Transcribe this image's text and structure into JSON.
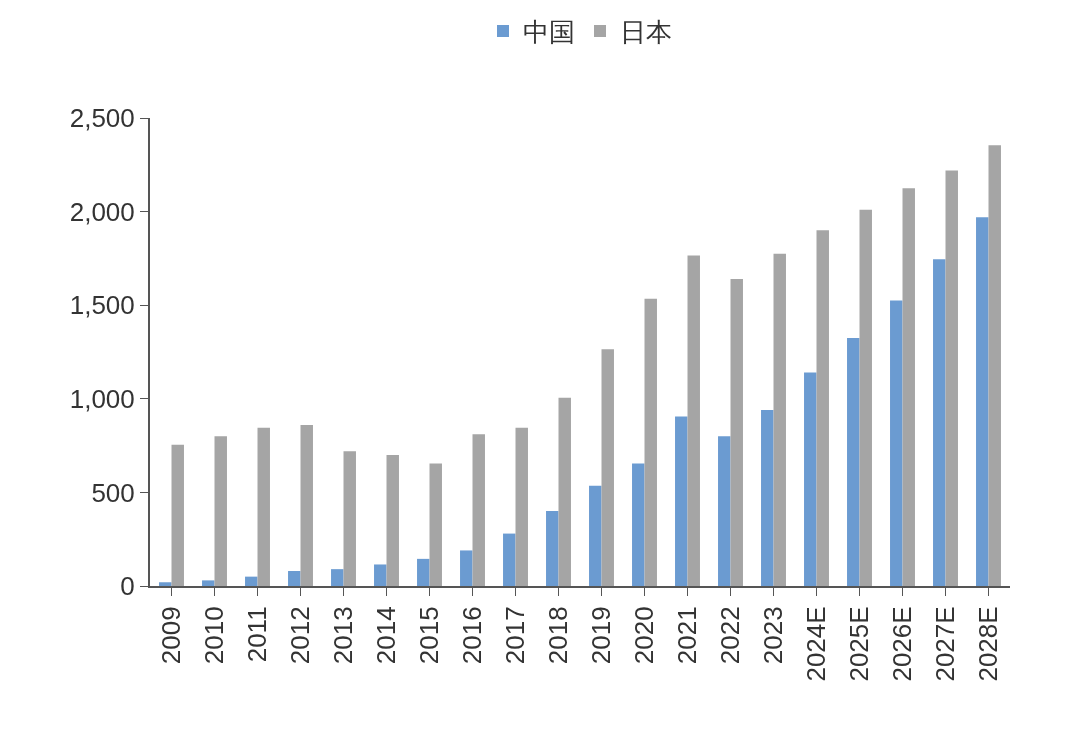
{
  "chart_data": {
    "type": "bar",
    "categories": [
      "2009",
      "2010",
      "2011",
      "2012",
      "2013",
      "2014",
      "2015",
      "2016",
      "2017",
      "2018",
      "2019",
      "2020",
      "2021",
      "2022",
      "2023",
      "2024E",
      "2025E",
      "2026E",
      "2027E",
      "2028E"
    ],
    "series": [
      {
        "name": "中国",
        "color": "#6b9bd1",
        "values": [
          20,
          30,
          50,
          80,
          90,
          115,
          145,
          190,
          280,
          400,
          535,
          655,
          905,
          800,
          940,
          1140,
          1325,
          1525,
          1745,
          1970
        ]
      },
      {
        "name": "日本",
        "color": "#a5a5a5",
        "values": [
          755,
          800,
          845,
          860,
          720,
          700,
          655,
          810,
          845,
          1005,
          1265,
          1535,
          1765,
          1640,
          1775,
          1900,
          2010,
          2125,
          2220,
          2355
        ]
      }
    ],
    "ylim": [
      0,
      2500
    ],
    "yticks": [
      0,
      {
        "value": 500,
        "label": "500"
      },
      {
        "value": 1000,
        "label": "1,000"
      },
      {
        "value": 1500,
        "label": "1,500"
      },
      {
        "value": 2000,
        "label": "2,000"
      },
      {
        "value": 2500,
        "label": "2,500"
      }
    ],
    "grid": false,
    "legend": "top"
  }
}
